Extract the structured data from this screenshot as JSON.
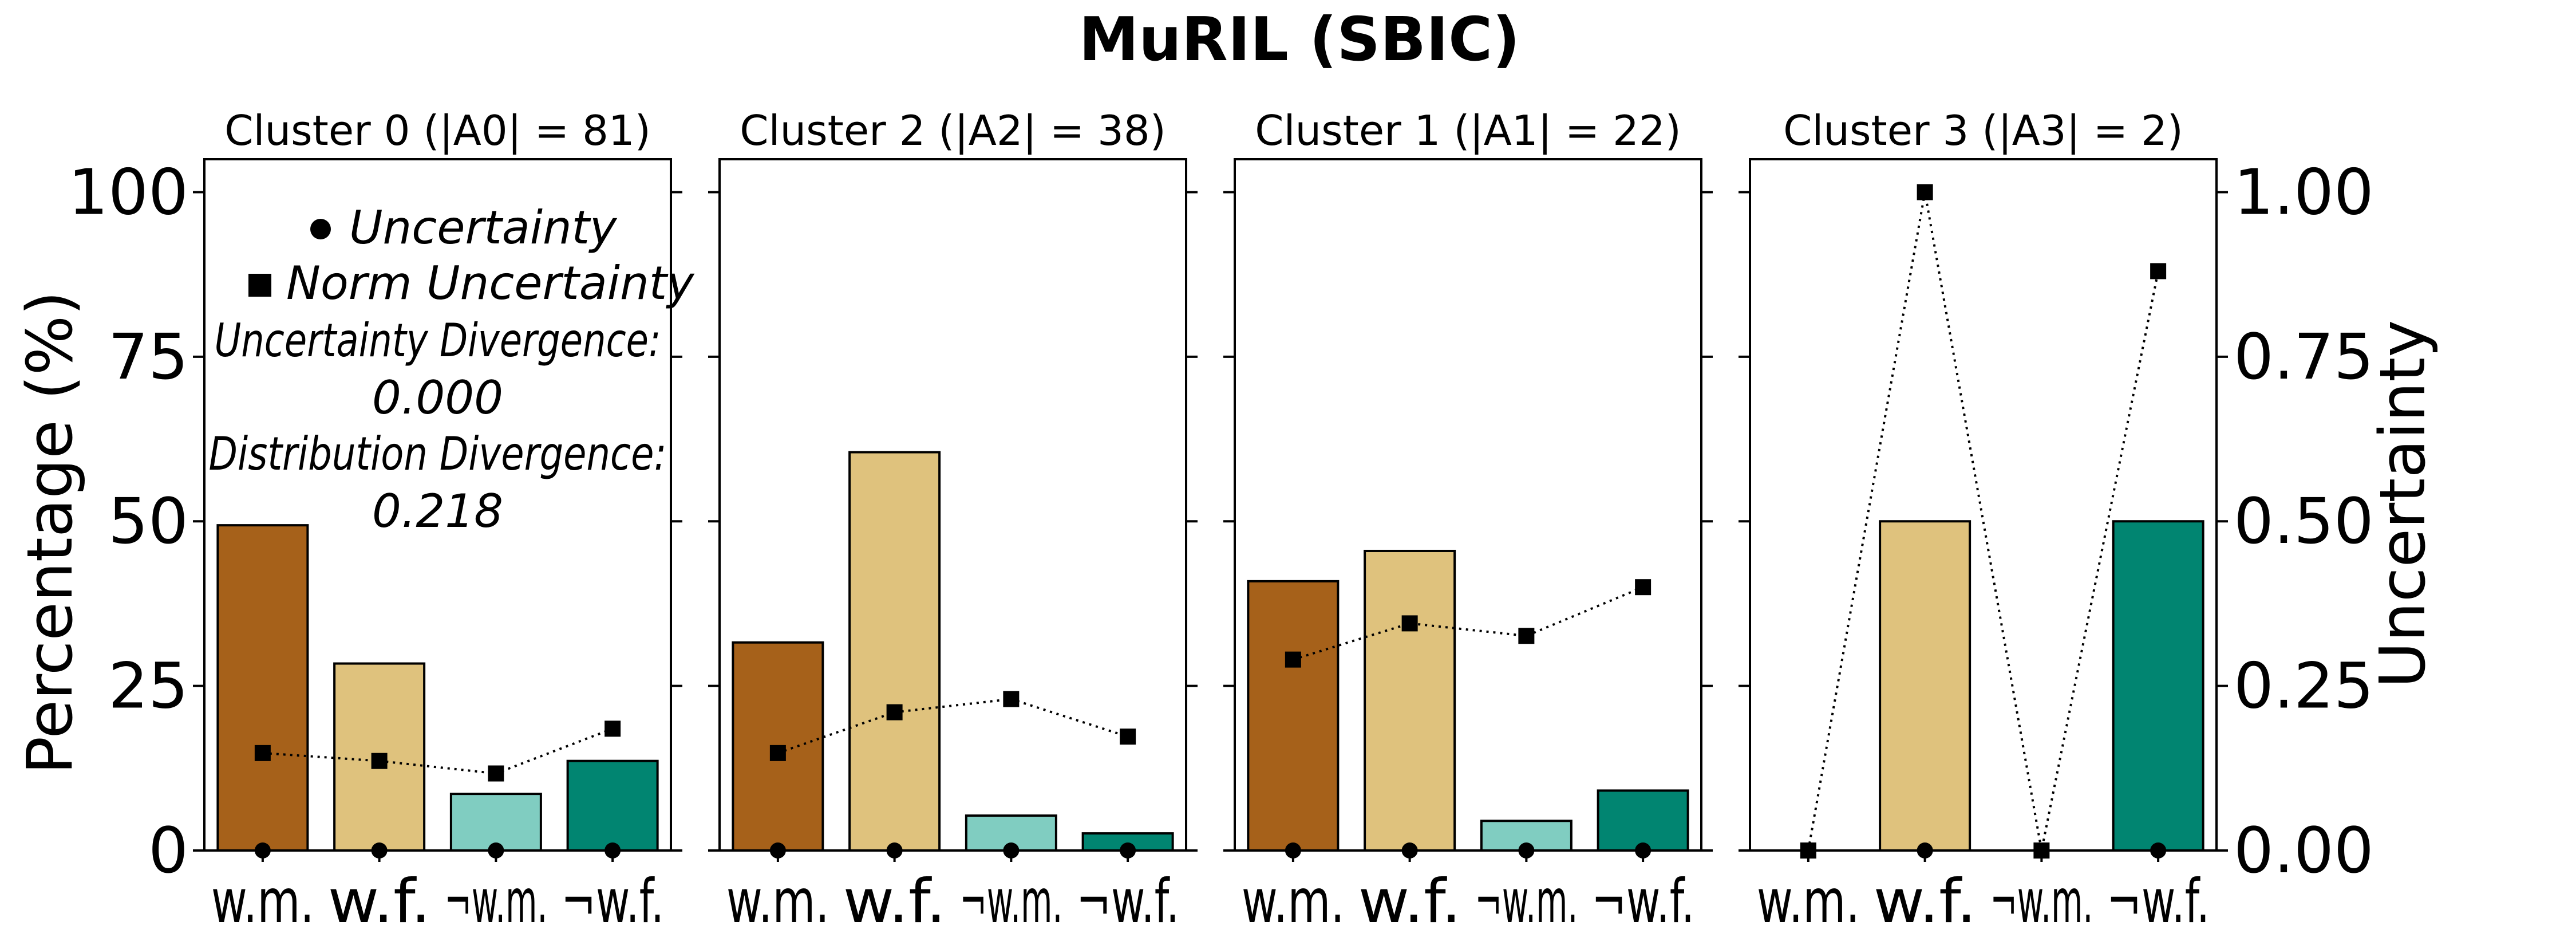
{
  "chart_data": {
    "type": "bar",
    "title": "MuRIL (SBIC)",
    "categories": [
      "w.m.",
      "w.f.",
      "¬w.m.",
      "¬w.f."
    ],
    "colors": [
      "#a6611a",
      "#dfc27d",
      "#80cdc1",
      "#018571"
    ],
    "ylabel_left": "Percentage (%)",
    "ylabel_right": "Uncertainty",
    "ylim_left": [
      0,
      105
    ],
    "ylim_right": [
      0,
      1.05
    ],
    "yticks_left": [
      "0",
      "25",
      "50",
      "75",
      "100"
    ],
    "yticks_right": [
      "0.00",
      "0.25",
      "0.50",
      "0.75",
      "1.00"
    ],
    "legend": {
      "uncertainty": "Uncertainty",
      "norm_uncertainty": "Norm Uncertainty",
      "unc_div_label": "Uncertainty Divergence:",
      "unc_div_value": "0.000",
      "dist_div_label": "Distribution Divergence:",
      "dist_div_value": "0.218"
    },
    "panels": [
      {
        "title": "Cluster 0 (|A0| = 81)",
        "percentages": [
          49.4,
          28.4,
          8.6,
          13.6
        ],
        "uncertainty": [
          0,
          0,
          0,
          0
        ],
        "norm_uncertainty": [
          0.148,
          0.136,
          0.117,
          0.185
        ]
      },
      {
        "title": "Cluster 2 (|A2| = 38)",
        "percentages": [
          31.6,
          60.5,
          5.3,
          2.6
        ],
        "uncertainty": [
          0,
          0,
          0,
          0
        ],
        "norm_uncertainty": [
          0.148,
          0.21,
          0.23,
          0.173
        ]
      },
      {
        "title": "Cluster 1 (|A1| = 22)",
        "percentages": [
          40.9,
          45.5,
          4.5,
          9.1
        ],
        "uncertainty": [
          0,
          0,
          0,
          0
        ],
        "norm_uncertainty": [
          0.29,
          0.345,
          0.326,
          0.4
        ]
      },
      {
        "title": "Cluster 3 (|A3| = 2)",
        "percentages": [
          0,
          50,
          0,
          50
        ],
        "uncertainty": [
          0,
          0,
          0,
          0
        ],
        "norm_uncertainty": [
          0,
          1.0,
          0,
          0.88
        ]
      }
    ]
  }
}
